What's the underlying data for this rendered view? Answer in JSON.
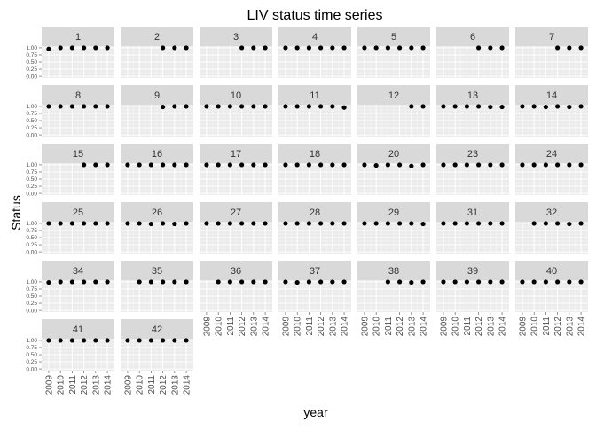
{
  "chart_data": {
    "type": "scatter",
    "title": "LIV status time series",
    "xlabel": "year",
    "ylabel": "Status",
    "facet_layout": "wrap",
    "facet_columns": 7,
    "x_ticks": [
      "2009",
      "2010",
      "2011",
      "2012",
      "2013",
      "2014"
    ],
    "y_ticks": [
      "0.00",
      "0.25",
      "0.50",
      "0.75",
      "1.00"
    ],
    "ylim": [
      0,
      1
    ],
    "grid": true,
    "colors": {
      "strip_bg": "#d9d9d9",
      "panel_bg": "#ebebeb",
      "grid_major": "#ffffff",
      "grid_minor": "#f5f5f5",
      "point": "#000000",
      "text": "#333333",
      "tick_text": "#4d4d4d"
    },
    "facets": [
      {
        "label": "1",
        "x": [
          2009,
          2010,
          2011,
          2012,
          2013,
          2014
        ],
        "y": [
          0.96,
          1,
          1,
          1,
          1,
          1
        ]
      },
      {
        "label": "2",
        "x": [
          2012,
          2013,
          2014
        ],
        "y": [
          1,
          1,
          1
        ]
      },
      {
        "label": "3",
        "x": [
          2012,
          2013,
          2014
        ],
        "y": [
          1,
          1,
          1
        ]
      },
      {
        "label": "4",
        "x": [
          2009,
          2010,
          2011,
          2012,
          2013,
          2014
        ],
        "y": [
          1,
          1,
          1,
          1,
          1,
          1
        ]
      },
      {
        "label": "5",
        "x": [
          2009,
          2010,
          2011,
          2012,
          2013,
          2014
        ],
        "y": [
          1,
          1,
          1,
          1,
          1,
          1
        ]
      },
      {
        "label": "6",
        "x": [
          2012,
          2013,
          2014
        ],
        "y": [
          1,
          1,
          1
        ]
      },
      {
        "label": "7",
        "x": [
          2012,
          2013,
          2014
        ],
        "y": [
          1,
          1,
          1
        ]
      },
      {
        "label": "8",
        "x": [
          2009,
          2010,
          2011,
          2012,
          2013,
          2014
        ],
        "y": [
          1,
          1,
          1,
          1,
          1,
          1
        ]
      },
      {
        "label": "9",
        "x": [
          2012,
          2013,
          2014
        ],
        "y": [
          0.98,
          1,
          1
        ]
      },
      {
        "label": "10",
        "x": [
          2009,
          2010,
          2011,
          2012,
          2013,
          2014
        ],
        "y": [
          1,
          1,
          1,
          1,
          1,
          1
        ]
      },
      {
        "label": "11",
        "x": [
          2009,
          2010,
          2011,
          2012,
          2013,
          2014
        ],
        "y": [
          1,
          1,
          1,
          1,
          1,
          0.96
        ]
      },
      {
        "label": "12",
        "x": [
          2013,
          2014
        ],
        "y": [
          1,
          1
        ]
      },
      {
        "label": "13",
        "x": [
          2009,
          2010,
          2011,
          2012,
          2013,
          2014
        ],
        "y": [
          1,
          1,
          1,
          1,
          0.98,
          0.98
        ]
      },
      {
        "label": "14",
        "x": [
          2009,
          2010,
          2011,
          2012,
          2013,
          2014
        ],
        "y": [
          1,
          1,
          0.98,
          1,
          0.98,
          1
        ]
      },
      {
        "label": "15",
        "x": [
          2012,
          2013,
          2014
        ],
        "y": [
          1,
          1,
          1
        ]
      },
      {
        "label": "16",
        "x": [
          2009,
          2010,
          2011,
          2012,
          2013,
          2014
        ],
        "y": [
          1,
          1,
          1,
          1,
          1,
          1
        ]
      },
      {
        "label": "17",
        "x": [
          2009,
          2010,
          2011,
          2012,
          2013,
          2014
        ],
        "y": [
          1,
          1,
          1,
          1,
          1,
          1
        ]
      },
      {
        "label": "18",
        "x": [
          2009,
          2010,
          2011,
          2012,
          2013,
          2014
        ],
        "y": [
          1,
          1,
          1,
          1,
          1,
          1
        ]
      },
      {
        "label": "20",
        "x": [
          2009,
          2010,
          2011,
          2012,
          2013,
          2014
        ],
        "y": [
          1,
          0.98,
          1,
          1,
          0.96,
          1
        ]
      },
      {
        "label": "23",
        "x": [
          2009,
          2010,
          2011,
          2012,
          2013,
          2014
        ],
        "y": [
          1,
          1,
          1,
          1,
          1,
          1
        ]
      },
      {
        "label": "24",
        "x": [
          2009,
          2010,
          2011,
          2012,
          2013,
          2014
        ],
        "y": [
          1,
          1,
          1,
          1,
          1,
          1
        ]
      },
      {
        "label": "25",
        "x": [
          2009,
          2010,
          2011,
          2012,
          2013,
          2014
        ],
        "y": [
          1,
          1,
          1,
          1,
          1,
          1
        ]
      },
      {
        "label": "26",
        "x": [
          2009,
          2010,
          2011,
          2012,
          2013,
          2014
        ],
        "y": [
          1,
          1,
          0.98,
          1,
          0.98,
          1
        ]
      },
      {
        "label": "27",
        "x": [
          2009,
          2010,
          2011,
          2012,
          2013,
          2014
        ],
        "y": [
          1,
          1,
          1,
          1,
          1,
          1
        ]
      },
      {
        "label": "28",
        "x": [
          2009,
          2010,
          2011,
          2012,
          2013,
          2014
        ],
        "y": [
          1,
          1,
          1,
          1,
          1,
          1
        ]
      },
      {
        "label": "29",
        "x": [
          2009,
          2010,
          2011,
          2012,
          2013,
          2014
        ],
        "y": [
          1,
          1,
          1,
          1,
          1,
          0.98
        ]
      },
      {
        "label": "31",
        "x": [
          2009,
          2010,
          2011,
          2012,
          2013,
          2014
        ],
        "y": [
          1,
          1,
          1,
          1,
          1,
          1
        ]
      },
      {
        "label": "32",
        "x": [
          2010,
          2011,
          2012,
          2013,
          2014
        ],
        "y": [
          1,
          1,
          1,
          0.98,
          1
        ]
      },
      {
        "label": "34",
        "x": [
          2009,
          2010,
          2011,
          2012,
          2013,
          2014
        ],
        "y": [
          0.98,
          1,
          1,
          1,
          1,
          1
        ]
      },
      {
        "label": "35",
        "x": [
          2010,
          2011,
          2012,
          2013,
          2014
        ],
        "y": [
          1,
          1,
          1,
          1,
          1
        ]
      },
      {
        "label": "36",
        "x": [
          2010,
          2011,
          2012,
          2013,
          2014
        ],
        "y": [
          1,
          1,
          1,
          1,
          1
        ]
      },
      {
        "label": "37",
        "x": [
          2009,
          2010,
          2011,
          2012,
          2013,
          2014
        ],
        "y": [
          1,
          0.98,
          1,
          1,
          1,
          1
        ]
      },
      {
        "label": "38",
        "x": [
          2011,
          2012,
          2013,
          2014
        ],
        "y": [
          1,
          1,
          0.98,
          1
        ]
      },
      {
        "label": "39",
        "x": [
          2009,
          2010,
          2011,
          2012,
          2013,
          2014
        ],
        "y": [
          1,
          1,
          1,
          1,
          1,
          1
        ]
      },
      {
        "label": "40",
        "x": [
          2009,
          2010,
          2011,
          2012,
          2013,
          2014
        ],
        "y": [
          1,
          1,
          1,
          1,
          1,
          1
        ]
      },
      {
        "label": "41",
        "x": [
          2009,
          2010,
          2011,
          2012,
          2013,
          2014
        ],
        "y": [
          1,
          1,
          1,
          1,
          1,
          1
        ]
      },
      {
        "label": "42",
        "x": [
          2009,
          2010,
          2011,
          2012,
          2013,
          2014
        ],
        "y": [
          1,
          1,
          1,
          1,
          1,
          1
        ]
      }
    ]
  }
}
